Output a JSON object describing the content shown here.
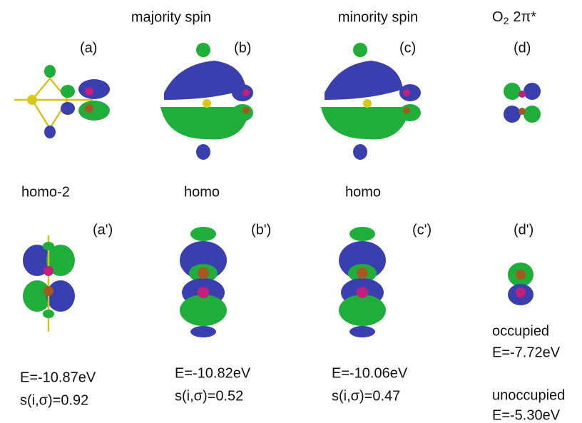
{
  "headers": {
    "majority": "majority spin",
    "minority": "minority spin",
    "o2": {
      "base": "O",
      "sub": "2",
      "rest": "2π*"
    }
  },
  "panels": [
    "(a)",
    "(b)",
    "(c)",
    "(d)",
    "(a')",
    "(b')",
    "(c')",
    "(d')"
  ],
  "orbitals": [
    "homo-2",
    "homo",
    "homo"
  ],
  "energies": [
    {
      "E": "E=-10.87eV",
      "s": "s(i,σ)=0.92"
    },
    {
      "E": "E=-10.82eV",
      "s": "s(i,σ)=0.52"
    },
    {
      "E": "E=-10.06eV",
      "s": "s(i,σ)=0.47"
    }
  ],
  "o2_states": [
    {
      "state": "occupied",
      "E": "E=-7.72eV"
    },
    {
      "state": "unoccupied",
      "E": "E=-5.30eV"
    }
  ]
}
